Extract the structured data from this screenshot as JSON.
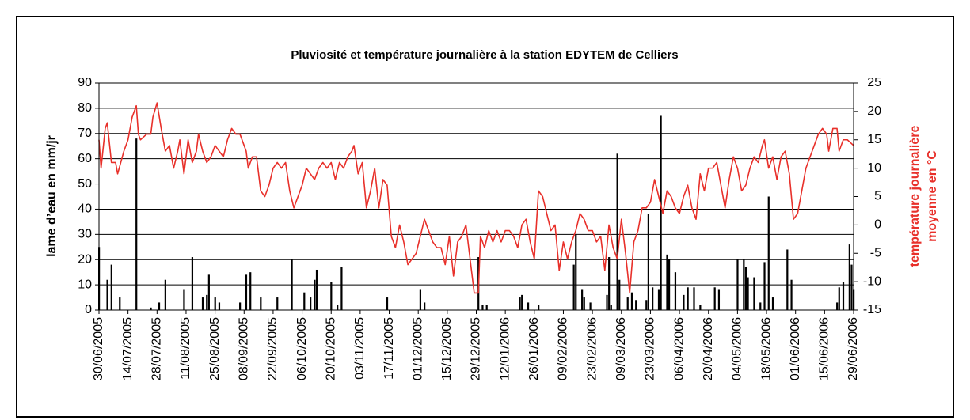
{
  "chart_data": {
    "type": "combo",
    "title": "Pluviosité et température journalière à la station EDYTEM de Celliers",
    "ylabel": "lame d’eau en mm/jr",
    "y2label": [
      "température journalière",
      "moyenne en °C"
    ],
    "ylim": [
      0,
      90
    ],
    "yticks": [
      0,
      10,
      20,
      30,
      40,
      50,
      60,
      70,
      80,
      90
    ],
    "y2lim": [
      -15,
      25
    ],
    "y2ticks": [
      -15,
      -10,
      -5,
      0,
      5,
      10,
      15,
      20,
      25
    ],
    "xlim": [
      "30/06/2005",
      "29/06/2006"
    ],
    "xticks": [
      "30/06/2005",
      "14/07/2005",
      "28/07/2005",
      "11/08/2005",
      "25/08/2005",
      "08/09/2005",
      "22/09/2005",
      "06/10/2005",
      "20/10/2005",
      "03/11/2005",
      "17/11/2005",
      "01/12/2005",
      "15/12/2005",
      "29/12/2005",
      "12/01/2006",
      "26/01/2006",
      "09/02/2006",
      "23/02/2006",
      "09/03/2006",
      "23/03/2006",
      "06/04/2006",
      "20/04/2006",
      "04/05/2006",
      "18/05/2006",
      "01/06/2006",
      "15/06/2006",
      "29/06/2006"
    ],
    "grid": true,
    "series": [
      {
        "type": "bar",
        "color": "#000000",
        "x": [
          "30/06/2005",
          "04/07/2005",
          "06/07/2005",
          "10/07/2005",
          "18/07/2005",
          "25/07/2005",
          "29/07/2005",
          "01/08/2005",
          "10/08/2005",
          "14/08/2005",
          "19/08/2005",
          "21/08/2005",
          "22/08/2005",
          "25/08/2005",
          "27/08/2005",
          "06/09/2005",
          "09/09/2005",
          "11/09/2005",
          "16/09/2005",
          "24/09/2005",
          "01/10/2005",
          "07/10/2005",
          "10/10/2005",
          "12/10/2005",
          "13/10/2005",
          "20/10/2005",
          "23/10/2005",
          "25/10/2005",
          "16/11/2005",
          "02/12/2005",
          "04/12/2005",
          "30/12/2005",
          "01/01/2006",
          "03/01/2006",
          "19/01/2006",
          "20/01/2006",
          "23/01/2006",
          "28/01/2006",
          "14/02/2006",
          "15/02/2006",
          "18/02/2006",
          "19/02/2006",
          "22/02/2006",
          "02/03/2006",
          "03/03/2006",
          "04/03/2006",
          "07/03/2006",
          "08/03/2006",
          "12/03/2006",
          "14/03/2006",
          "16/03/2006",
          "21/03/2006",
          "22/03/2006",
          "24/03/2006",
          "27/03/2006",
          "28/03/2006",
          "31/03/2006",
          "01/04/2006",
          "04/04/2006",
          "08/04/2006",
          "10/04/2006",
          "13/04/2006",
          "16/04/2006",
          "23/04/2006",
          "25/04/2006",
          "04/05/2006",
          "07/05/2006",
          "08/05/2006",
          "09/05/2006",
          "12/05/2006",
          "15/05/2006",
          "17/05/2006",
          "19/05/2006",
          "21/05/2006",
          "28/05/2006",
          "30/05/2006",
          "21/06/2006",
          "22/06/2006",
          "24/06/2006",
          "27/06/2006",
          "28/06/2006",
          "29/06/2006"
        ],
        "values": [
          25,
          12,
          18,
          5,
          68,
          1,
          3,
          12,
          8,
          21,
          5,
          6,
          14,
          5,
          3,
          3,
          14,
          15,
          5,
          5,
          20,
          7,
          5,
          12,
          16,
          11,
          2,
          17,
          5,
          8,
          3,
          21,
          2,
          2,
          5,
          6,
          3,
          2,
          18,
          30,
          8,
          5,
          3,
          6,
          21,
          2,
          62,
          12,
          5,
          7,
          4,
          4,
          38,
          9,
          8,
          77,
          22,
          20,
          15,
          6,
          9,
          9,
          2,
          9,
          8,
          20,
          20,
          17,
          13,
          13,
          3,
          19,
          45,
          5,
          24,
          12,
          3,
          9,
          11,
          26,
          18,
          8
        ]
      },
      {
        "type": "line",
        "axis": "y2",
        "color": "#e8302a",
        "x": [
          "30/06/2005",
          "01/07/2005",
          "03/07/2005",
          "04/07/2005",
          "06/07/2005",
          "08/07/2005",
          "09/07/2005",
          "12/07/2005",
          "14/07/2005",
          "16/07/2005",
          "18/07/2005",
          "19/07/2005",
          "20/07/2005",
          "23/07/2005",
          "25/07/2005",
          "26/07/2005",
          "28/07/2005",
          "30/07/2005",
          "01/08/2005",
          "03/08/2005",
          "05/08/2005",
          "07/08/2005",
          "08/08/2005",
          "10/08/2005",
          "12/08/2005",
          "14/08/2005",
          "16/08/2005",
          "17/08/2005",
          "19/08/2005",
          "21/08/2005",
          "23/08/2005",
          "25/08/2005",
          "27/08/2005",
          "29/08/2005",
          "31/08/2005",
          "02/09/2005",
          "04/09/2005",
          "06/09/2005",
          "08/09/2005",
          "09/09/2005",
          "10/09/2005",
          "12/09/2005",
          "14/09/2005",
          "16/09/2005",
          "18/09/2005",
          "20/09/2005",
          "22/09/2005",
          "24/09/2005",
          "26/09/2005",
          "28/09/2005",
          "30/09/2005",
          "02/10/2005",
          "04/10/2005",
          "06/10/2005",
          "08/10/2005",
          "10/10/2005",
          "12/10/2005",
          "14/10/2005",
          "16/10/2005",
          "18/10/2005",
          "20/10/2005",
          "22/10/2005",
          "24/10/2005",
          "26/10/2005",
          "28/10/2005",
          "30/10/2005",
          "31/10/2005",
          "02/11/2005",
          "04/11/2005",
          "06/11/2005",
          "08/11/2005",
          "10/11/2005",
          "12/11/2005",
          "14/11/2005",
          "16/11/2005",
          "18/11/2005",
          "20/11/2005",
          "22/11/2005",
          "24/11/2005",
          "26/11/2005",
          "28/11/2005",
          "30/11/2005",
          "02/12/2005",
          "04/12/2005",
          "06/12/2005",
          "08/12/2005",
          "10/12/2005",
          "12/12/2005",
          "14/12/2005",
          "16/12/2005",
          "18/12/2005",
          "20/12/2005",
          "22/12/2005",
          "24/12/2005",
          "26/12/2005",
          "28/12/2005",
          "30/12/2005",
          "31/12/2005",
          "02/01/2006",
          "04/01/2006",
          "06/01/2006",
          "08/01/2006",
          "10/01/2006",
          "12/01/2006",
          "14/01/2006",
          "16/01/2006",
          "18/01/2006",
          "20/01/2006",
          "22/01/2006",
          "24/01/2006",
          "26/01/2006",
          "28/01/2006",
          "30/01/2006",
          "01/02/2006",
          "03/02/2006",
          "05/02/2006",
          "07/02/2006",
          "09/02/2006",
          "11/02/2006",
          "13/02/2006",
          "15/02/2006",
          "17/02/2006",
          "19/02/2006",
          "21/02/2006",
          "23/02/2006",
          "25/02/2006",
          "27/02/2006",
          "01/03/2006",
          "03/03/2006",
          "05/03/2006",
          "07/03/2006",
          "09/03/2006",
          "11/03/2006",
          "13/03/2006",
          "15/03/2006",
          "17/03/2006",
          "19/03/2006",
          "21/03/2006",
          "23/03/2006",
          "25/03/2006",
          "27/03/2006",
          "29/03/2006",
          "31/03/2006",
          "02/04/2006",
          "04/04/2006",
          "06/04/2006",
          "08/04/2006",
          "10/04/2006",
          "12/04/2006",
          "14/04/2006",
          "16/04/2006",
          "18/04/2006",
          "20/04/2006",
          "22/04/2006",
          "24/04/2006",
          "26/04/2006",
          "28/04/2006",
          "30/04/2006",
          "02/05/2006",
          "04/05/2006",
          "06/05/2006",
          "08/05/2006",
          "10/05/2006",
          "12/05/2006",
          "14/05/2006",
          "16/05/2006",
          "17/05/2006",
          "19/05/2006",
          "21/05/2006",
          "23/05/2006",
          "25/05/2006",
          "27/05/2006",
          "29/05/2006",
          "31/05/2006",
          "02/06/2006",
          "04/06/2006",
          "06/06/2006",
          "08/06/2006",
          "10/06/2006",
          "12/06/2006",
          "14/06/2006",
          "16/06/2006",
          "17/06/2006",
          "19/06/2006",
          "21/06/2006",
          "22/06/2006",
          "24/06/2006",
          "26/06/2006",
          "29/06/2006"
        ],
        "values": [
          15,
          10,
          17,
          18,
          11,
          11,
          9,
          13,
          15,
          19,
          21,
          16,
          15,
          16,
          16,
          19,
          21.5,
          17,
          13,
          14,
          10,
          13,
          15,
          9,
          15,
          11,
          13,
          16,
          13,
          11,
          12,
          14,
          13,
          12,
          15,
          17,
          16,
          16,
          14,
          13,
          10,
          12,
          12,
          6,
          5,
          7,
          10,
          11,
          10,
          11,
          6,
          3,
          5,
          7,
          10,
          9,
          8,
          10,
          11,
          10,
          11,
          8,
          11,
          10,
          12,
          13,
          14,
          9,
          11,
          3,
          6,
          10,
          3,
          8,
          7,
          -2,
          -4,
          0,
          -3,
          -7,
          -6,
          -5,
          -2,
          1,
          -1,
          -3,
          -4,
          -4,
          -7,
          -2,
          -9,
          -3,
          -2,
          0,
          -6,
          -12,
          -12,
          -2,
          -4,
          -1,
          -3,
          -1,
          -3,
          -1,
          -1,
          -2,
          -4,
          0,
          1,
          -3,
          -6,
          6,
          5,
          2,
          -1,
          0,
          -8,
          -3,
          -6,
          -3,
          -1,
          2,
          1,
          -1,
          -1,
          -3,
          -2,
          -8,
          0,
          -4,
          -6,
          1,
          -5,
          -12,
          -3,
          -1,
          3,
          3,
          4,
          8,
          5,
          2,
          6,
          5,
          3,
          2,
          5,
          7,
          3,
          1,
          9,
          6,
          10,
          10,
          11,
          7,
          3,
          8,
          12,
          10,
          6,
          7,
          10,
          12,
          11,
          14,
          15,
          10,
          12,
          8,
          12,
          13,
          9,
          1,
          2,
          6,
          10,
          12,
          14,
          16,
          17,
          16,
          13,
          17,
          17,
          13,
          15,
          15,
          14
        ]
      }
    ]
  }
}
